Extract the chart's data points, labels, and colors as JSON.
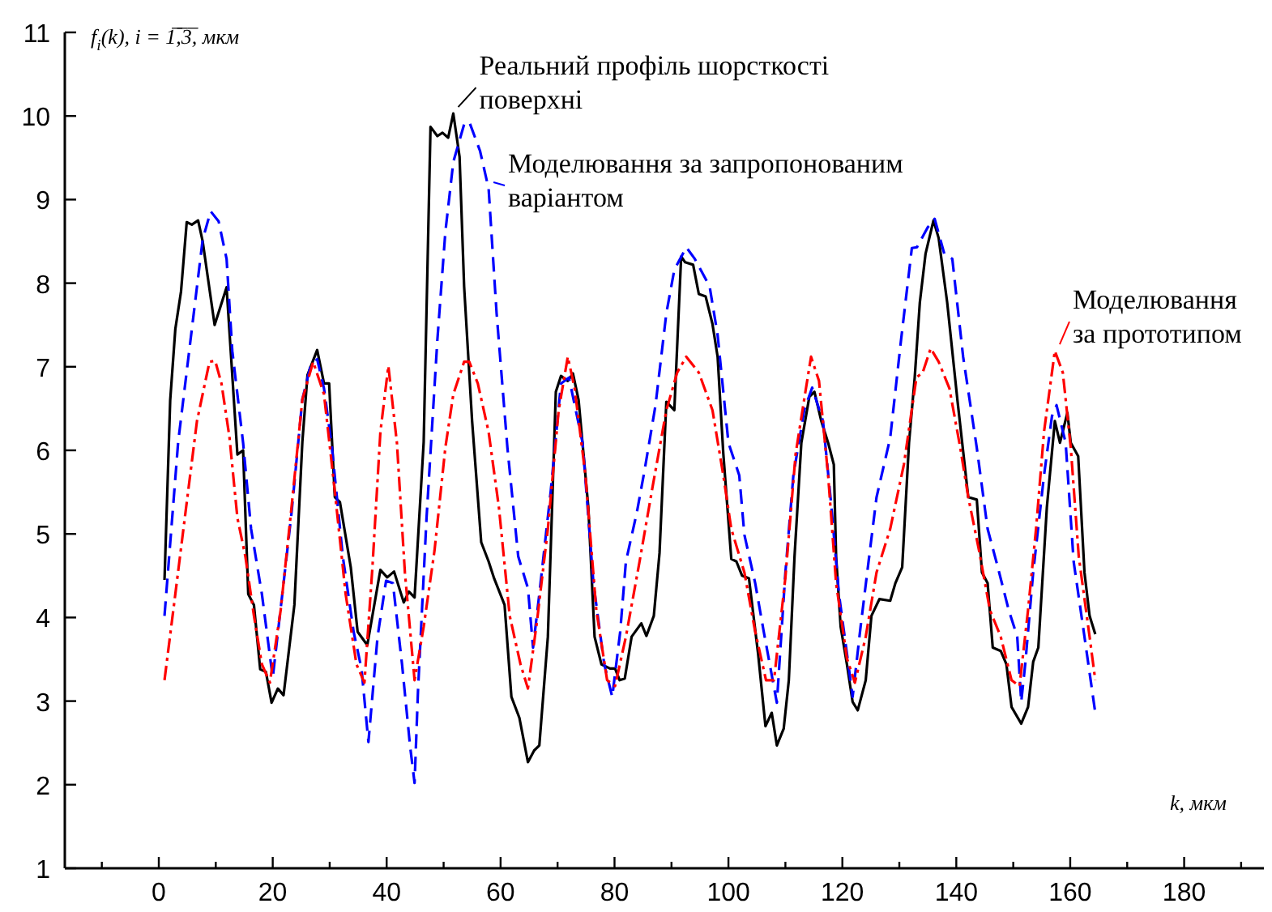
{
  "chart_data": {
    "type": "line",
    "xlabel": "k, мкм",
    "ylabel": "f$_{i}$(k),  i = 1̅,̅3̅, мкм",
    "xlim": [
      -16.5,
      194
    ],
    "ylim": [
      1,
      11
    ],
    "xticks": [
      {
        "value": -10,
        "label": null
      },
      0,
      {
        "value": 10,
        "label": null
      },
      20,
      {
        "value": 30,
        "label": null
      },
      40,
      {
        "value": 50,
        "label": null
      },
      60,
      {
        "value": 70,
        "label": null
      },
      80,
      {
        "value": 90,
        "label": null
      },
      100,
      {
        "value": 110,
        "label": null
      },
      120,
      {
        "value": 130,
        "label": null
      },
      140,
      {
        "value": 150,
        "label": null
      },
      160,
      {
        "value": 170,
        "label": null
      },
      180,
      {
        "value": 190,
        "label": null
      }
    ],
    "yticks": [
      1,
      2,
      3,
      4,
      5,
      6,
      7,
      8,
      9,
      10,
      11
    ],
    "grid": false,
    "legend": "top",
    "marker": "none",
    "series": [
      {
        "name": "Реальний профіль шорсткості поверхні",
        "color": "#000000",
        "line_style": "solid",
        "x": [
          1,
          2,
          2.9,
          3.9,
          4.9,
          5.8,
          6.9,
          7.7,
          9.8,
          11.9,
          13.8,
          14.8,
          15.7,
          16.7,
          17.8,
          18.8,
          19.8,
          20.9,
          21.9,
          23.8,
          25.2,
          26.1,
          27.8,
          29,
          29.9,
          30.9,
          31.8,
          33.7,
          34.9,
          36.6,
          38.9,
          40.1,
          41.3,
          43,
          43.9,
          44.9,
          46.5,
          47.7,
          48.9,
          49.8,
          50.8,
          51.7,
          52.8,
          53.6,
          55,
          56.6,
          57.9,
          58.8,
          60.7,
          61.9,
          63.3,
          64.8,
          65.9,
          66.8,
          68.3,
          69.7,
          70.6,
          71.8,
          72.7,
          73.7,
          75.4,
          76.5,
          77.7,
          79.2,
          80.1,
          80.9,
          81.8,
          83,
          84.7,
          85.6,
          86.9,
          87.9,
          89.1,
          90.5,
          91.7,
          92.4,
          93.8,
          94.8,
          96,
          97.2,
          98.1,
          99.1,
          100.5,
          101.4,
          102.4,
          103.6,
          105.2,
          106.5,
          107.6,
          108.5,
          109.7,
          110.6,
          111.6,
          112.8,
          114.2,
          115.1,
          116.3,
          117.5,
          118.5,
          118.9,
          119.7,
          120.8,
          121.8,
          122.7,
          124.1,
          125.1,
          126.5,
          128.4,
          129.3,
          130.5,
          131.7,
          132.7,
          133.6,
          134.6,
          136,
          136.9,
          138.4,
          140.2,
          142.1,
          143.6,
          144.5,
          145.5,
          146.4,
          147.8,
          148.8,
          149.7,
          151.4,
          152.6,
          153.5,
          154.4,
          155.9,
          157.3,
          158.2,
          159.5,
          160.1,
          161.4,
          162.5,
          163.4,
          164.4
        ],
        "values": [
          4.45,
          6.6,
          7.45,
          7.9,
          8.73,
          8.7,
          8.75,
          8.5,
          7.5,
          7.95,
          5.95,
          6.0,
          4.28,
          4.15,
          3.38,
          3.35,
          2.98,
          3.15,
          3.07,
          4.15,
          6.1,
          6.9,
          7.2,
          6.8,
          6.8,
          5.44,
          5.38,
          4.6,
          3.83,
          3.67,
          4.57,
          4.48,
          4.55,
          4.18,
          4.31,
          4.24,
          6.1,
          9.87,
          9.76,
          9.8,
          9.74,
          10.03,
          9.51,
          7.96,
          6.35,
          4.9,
          4.67,
          4.48,
          4.15,
          3.05,
          2.8,
          2.27,
          2.41,
          2.47,
          3.77,
          6.7,
          6.89,
          6.83,
          6.92,
          6.6,
          5.32,
          3.77,
          3.44,
          3.39,
          3.39,
          3.25,
          3.27,
          3.77,
          3.93,
          3.78,
          4.02,
          4.77,
          6.58,
          6.48,
          8.32,
          8.25,
          8.22,
          7.87,
          7.84,
          7.51,
          7.12,
          5.96,
          4.7,
          4.67,
          4.5,
          4.47,
          3.57,
          2.7,
          2.86,
          2.47,
          2.67,
          3.25,
          4.73,
          6.09,
          6.64,
          6.7,
          6.35,
          6.09,
          5.83,
          4.73,
          3.89,
          3.44,
          2.99,
          2.89,
          3.25,
          4.02,
          4.22,
          4.2,
          4.41,
          4.6,
          6.09,
          6.87,
          7.77,
          8.35,
          8.75,
          8.54,
          7.77,
          6.6,
          5.44,
          5.41,
          4.54,
          4.41,
          3.64,
          3.6,
          3.44,
          2.93,
          2.73,
          2.93,
          3.47,
          3.64,
          5.32,
          6.35,
          6.09,
          6.45,
          6.09,
          5.93,
          4.54,
          4.02,
          3.8
        ]
      },
      {
        "name": "Моделювання за запропонованим варіантом",
        "color": "#0000ff",
        "line_style": "dashed",
        "x": [
          1,
          3.4,
          5.8,
          7.7,
          9.1,
          10.5,
          11.9,
          12.9,
          14.8,
          16.2,
          18.1,
          20,
          21.9,
          23.3,
          25.2,
          26.6,
          27.8,
          29,
          30.4,
          32.3,
          34.2,
          35.6,
          36.8,
          38.4,
          39.9,
          41.1,
          42.7,
          44.1,
          44.9,
          45.5,
          47,
          48.9,
          50.3,
          51.7,
          53.6,
          54.5,
          56.4,
          57.9,
          59.3,
          61.2,
          63.1,
          64.8,
          65.7,
          66.8,
          68.8,
          70.6,
          72,
          74.4,
          76.3,
          78.2,
          79.6,
          81,
          82,
          83.9,
          85.3,
          87.2,
          89.1,
          90.5,
          92.6,
          94.1,
          96.7,
          98.1,
          100,
          101.9,
          102.8,
          104.7,
          106.2,
          108.5,
          110,
          111.4,
          113.3,
          114.7,
          116.6,
          118,
          119.4,
          120.8,
          121.8,
          123.2,
          124.6,
          126,
          128.4,
          130.3,
          132.2,
          133.1,
          135,
          136.2,
          137.9,
          139.3,
          141.2,
          143.6,
          145.5,
          147.3,
          149.2,
          150.7,
          151.4,
          152.1,
          153.5,
          155.4,
          156.8,
          157.6,
          159.2,
          160.6,
          162.5,
          164.4
        ],
        "values": [
          4.02,
          6.1,
          7.45,
          8.52,
          8.86,
          8.74,
          8.29,
          7.19,
          6.09,
          5.06,
          4.28,
          3.28,
          4.41,
          5.25,
          6.61,
          7.0,
          7.09,
          6.74,
          6.03,
          4.73,
          3.83,
          3.38,
          2.51,
          3.77,
          4.44,
          4.41,
          3.44,
          2.47,
          2.02,
          3.12,
          5.19,
          7.32,
          8.61,
          9.45,
          9.9,
          9.93,
          9.58,
          9.13,
          7.64,
          6.03,
          4.73,
          4.35,
          3.64,
          4.28,
          5.51,
          6.8,
          6.87,
          6.09,
          4.41,
          3.44,
          3.05,
          3.83,
          4.67,
          5.25,
          5.77,
          6.54,
          7.64,
          8.16,
          8.43,
          8.29,
          7.96,
          7.38,
          6.09,
          5.7,
          4.99,
          4.41,
          3.83,
          2.98,
          4.54,
          5.7,
          6.48,
          6.75,
          6.35,
          5.38,
          4.28,
          3.57,
          3.05,
          3.89,
          4.67,
          5.44,
          6.15,
          7.32,
          8.42,
          8.43,
          8.67,
          8.77,
          8.35,
          8.29,
          7.12,
          6.03,
          5.06,
          4.6,
          4.09,
          3.77,
          2.99,
          3.44,
          4.54,
          5.7,
          6.41,
          6.54,
          6.09,
          4.67,
          3.77,
          2.86
        ]
      },
      {
        "name": "Моделювання за прототипом",
        "color": "#ff0000",
        "line_style": "dashdot",
        "x": [
          1,
          2.9,
          4.8,
          6.7,
          8.9,
          9.9,
          11,
          12.4,
          13.8,
          15.2,
          16.7,
          18.1,
          19.5,
          21.4,
          23.3,
          25.2,
          27.1,
          29,
          30.9,
          32.8,
          34.7,
          36.1,
          37.5,
          38.9,
          40.3,
          41.8,
          43.2,
          44.9,
          46.5,
          48.4,
          50.3,
          51.7,
          53.6,
          54.5,
          56,
          57.9,
          59.7,
          61.6,
          63.5,
          64.8,
          66.4,
          68.3,
          70.2,
          71.8,
          73,
          74.9,
          76.8,
          78.7,
          80.1,
          82,
          84.4,
          86.7,
          89.1,
          91,
          92.6,
          94.8,
          97.2,
          99.1,
          100.5,
          102.8,
          104.7,
          106.6,
          108,
          110,
          111.8,
          113.3,
          114.5,
          115.9,
          117.5,
          118.9,
          120.8,
          122.2,
          124.1,
          126,
          128.4,
          130.8,
          133,
          134.1,
          135.5,
          136.9,
          138.8,
          140.7,
          142.1,
          144,
          145.9,
          147.8,
          149.7,
          151.1,
          152.6,
          154,
          155.4,
          157.3,
          158.7,
          160.1,
          161.5,
          163.4,
          164.4
        ],
        "values": [
          3.25,
          4.28,
          5.32,
          6.35,
          7.06,
          7.07,
          6.8,
          6.16,
          5.19,
          4.73,
          4.02,
          3.44,
          3.22,
          4.09,
          5.32,
          6.61,
          7.06,
          6.67,
          5.51,
          4.28,
          3.44,
          3.22,
          4.6,
          6.22,
          7.01,
          6.09,
          4.54,
          3.25,
          3.89,
          4.8,
          6.03,
          6.67,
          7.06,
          7.06,
          6.8,
          6.22,
          5.32,
          4.02,
          3.44,
          3.15,
          3.96,
          5.06,
          6.48,
          7.12,
          6.74,
          5.7,
          4.09,
          3.25,
          3.18,
          3.77,
          4.67,
          5.57,
          6.48,
          6.93,
          7.12,
          6.93,
          6.48,
          5.7,
          5.06,
          4.54,
          3.83,
          3.25,
          3.25,
          4.48,
          5.96,
          6.61,
          7.12,
          6.83,
          5.7,
          4.41,
          3.51,
          3.22,
          3.77,
          4.54,
          5.06,
          5.83,
          6.87,
          6.93,
          7.22,
          7.06,
          6.74,
          6.03,
          5.44,
          4.8,
          4.09,
          3.77,
          3.25,
          3.18,
          4.09,
          5.06,
          6.22,
          7.19,
          6.93,
          6.03,
          4.73,
          3.77,
          3.25
        ]
      }
    ]
  }
}
